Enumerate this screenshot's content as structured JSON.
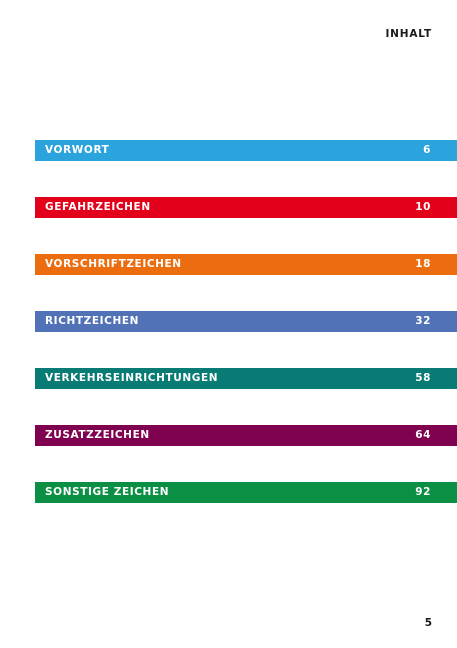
{
  "header": {
    "title": "INHALT"
  },
  "toc": {
    "items": [
      {
        "label": "VORWORT",
        "page": "6",
        "color": "#2ba3dc"
      },
      {
        "label": "GEFAHRZEICHEN",
        "page": "10",
        "color": "#e3001b"
      },
      {
        "label": "VORSCHRIFTZEICHEN",
        "page": "18",
        "color": "#ec6d10"
      },
      {
        "label": "RICHTZEICHEN",
        "page": "32",
        "color": "#5272b8"
      },
      {
        "label": "VERKEHRSEINRICHTUNGEN",
        "page": "58",
        "color": "#087c74"
      },
      {
        "label": "ZUSATZZEICHEN",
        "page": "64",
        "color": "#800150"
      },
      {
        "label": "SONSTIGE ZEICHEN",
        "page": "92",
        "color": "#0b8f45"
      }
    ]
  },
  "footer": {
    "page_number": "5"
  }
}
